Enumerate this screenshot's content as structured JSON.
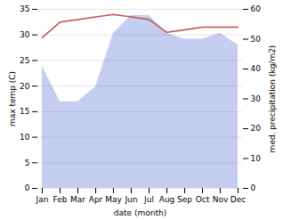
{
  "chart_data": {
    "type": "line",
    "xlabel": "date (month)",
    "ylabel": "max temp (C)",
    "y2label": "med. precipitation (kg/m2)",
    "categories": [
      "Jan",
      "Feb",
      "Mar",
      "Apr",
      "May",
      "Jun",
      "Jul",
      "Aug",
      "Sep",
      "Oct",
      "Nov",
      "Dec"
    ],
    "series": [
      {
        "type": "area",
        "axis": "y2",
        "color": "#c5cef0",
        "values": [
          41,
          29,
          29,
          34,
          52,
          58,
          58,
          52,
          50,
          50,
          52,
          48
        ]
      },
      {
        "type": "line",
        "color": "#c0504d",
        "values": [
          29.5,
          32.5,
          33.0,
          33.5,
          34.0,
          33.5,
          33.0,
          30.5,
          31.0,
          31.5,
          31.5,
          31.5
        ]
      }
    ],
    "ylim": [
      0,
      35
    ],
    "yticks": [
      0,
      5,
      10,
      15,
      20,
      25,
      30,
      35
    ],
    "y2lim": [
      0,
      60
    ],
    "y2ticks": [
      0,
      10,
      20,
      30,
      40,
      50,
      60
    ],
    "grid": true
  }
}
